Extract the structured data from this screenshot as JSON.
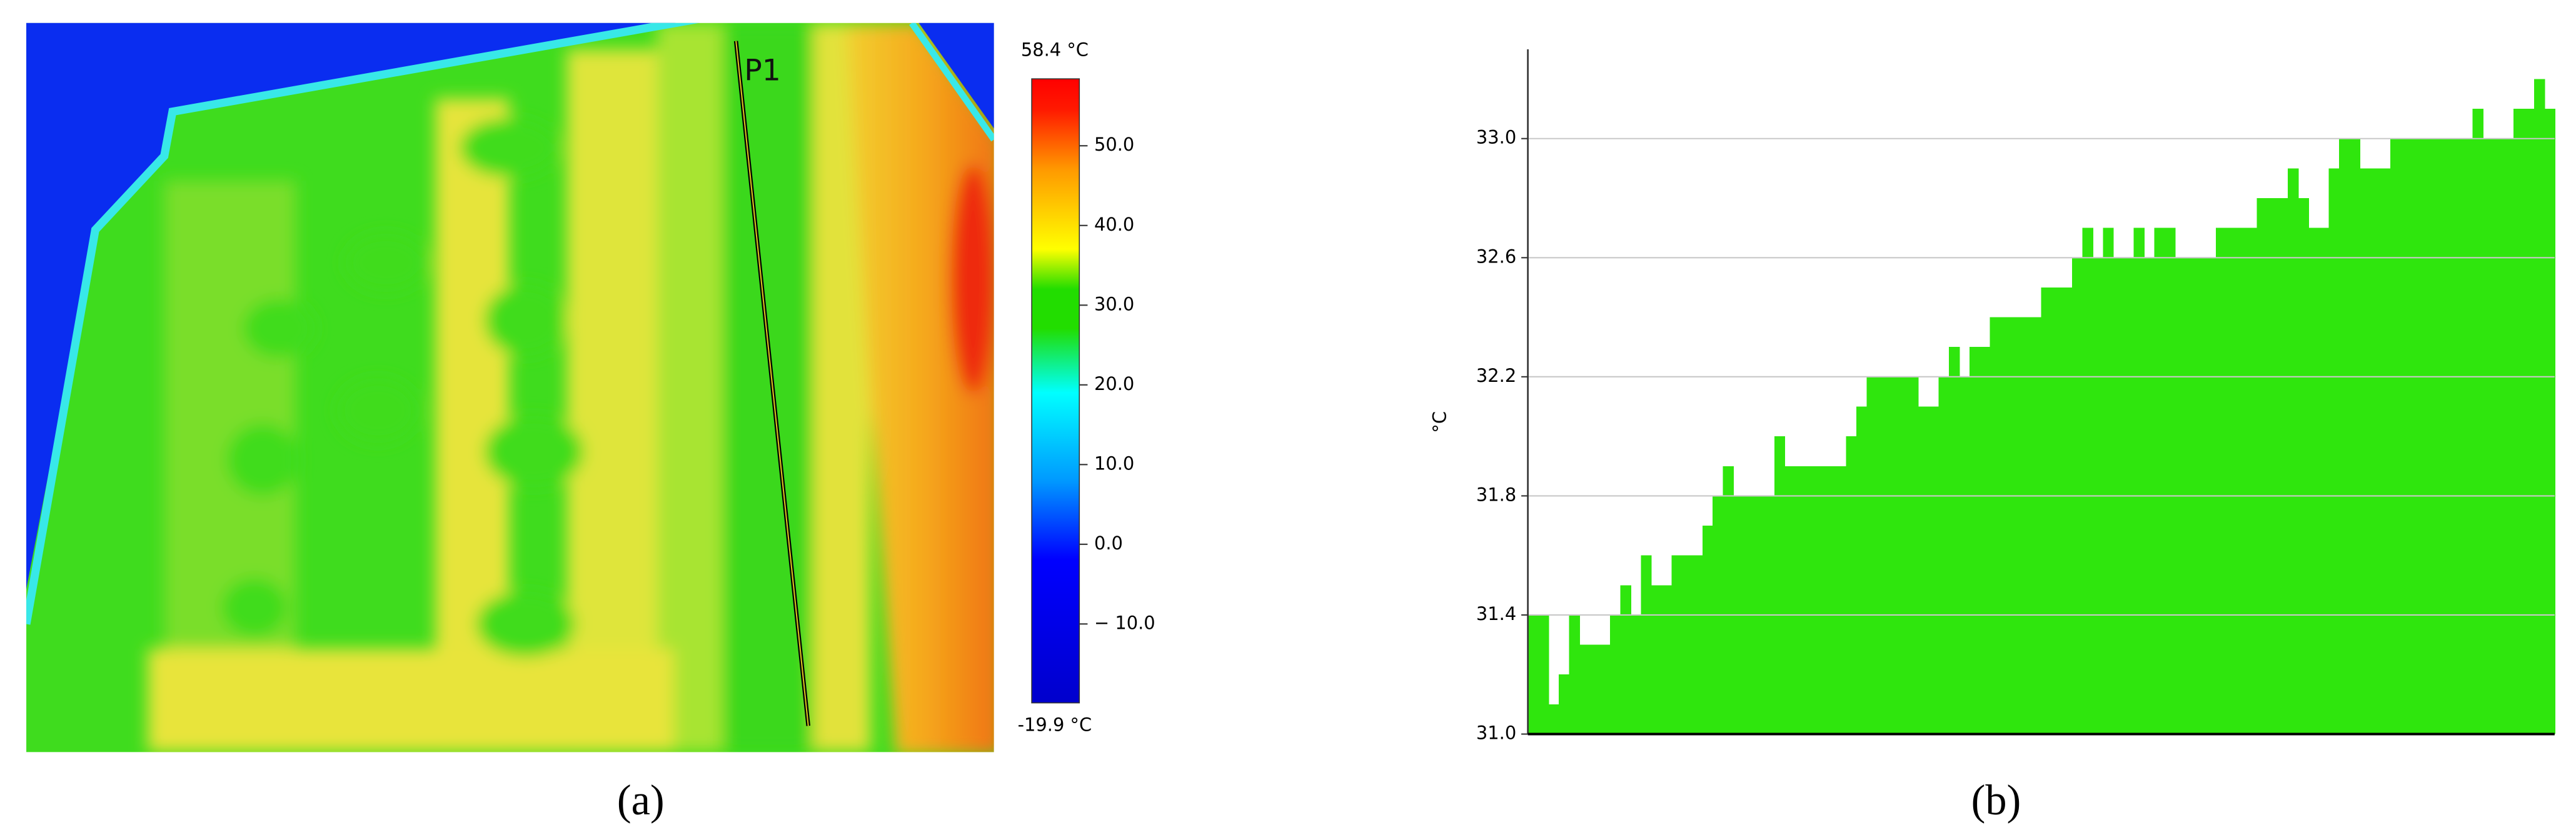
{
  "chart_data": [
    {
      "type": "image",
      "label": "P1",
      "caption": "(a)",
      "colorbar": {
        "max": {
          "value": 58.4,
          "label": "58.4 °C"
        },
        "min": {
          "value": -19.9,
          "label": "-19.9 °C"
        },
        "ticks": [
          {
            "value": 50,
            "label": "50.0"
          },
          {
            "value": 40,
            "label": "40.0"
          },
          {
            "value": 30,
            "label": "30.0"
          },
          {
            "value": 20,
            "label": "20.0"
          },
          {
            "value": 10,
            "label": "10.0"
          },
          {
            "value": 0,
            "label": "0.0"
          },
          {
            "value": -10,
            "label": "− 10.0"
          }
        ]
      }
    },
    {
      "type": "bar",
      "caption": "(b)",
      "y_label": "°C",
      "color": "#2fe60d",
      "grid": true,
      "ylim": [
        31,
        33.3
      ],
      "yticks": [
        {
          "value": 31,
          "label": "31.0"
        },
        {
          "value": 31.4,
          "label": "31.4"
        },
        {
          "value": 31.8,
          "label": "31.8"
        },
        {
          "value": 32.2,
          "label": "32.2"
        },
        {
          "value": 32.6,
          "label": "32.6"
        },
        {
          "value": 33,
          "label": "33.0"
        }
      ],
      "values": [
        31.4,
        31.4,
        31.1,
        31.2,
        31.4,
        31.3,
        31.3,
        31.3,
        31.4,
        31.5,
        31.4,
        31.6,
        31.5,
        31.5,
        31.6,
        31.6,
        31.6,
        31.7,
        31.8,
        31.9,
        31.8,
        31.8,
        31.8,
        31.8,
        32.0,
        31.9,
        31.9,
        31.9,
        31.9,
        31.9,
        31.9,
        32.0,
        32.1,
        32.2,
        32.2,
        32.2,
        32.2,
        32.2,
        32.1,
        32.1,
        32.2,
        32.3,
        32.2,
        32.3,
        32.3,
        32.4,
        32.4,
        32.4,
        32.4,
        32.4,
        32.5,
        32.5,
        32.5,
        32.6,
        32.7,
        32.6,
        32.7,
        32.6,
        32.6,
        32.7,
        32.6,
        32.7,
        32.7,
        32.6,
        32.6,
        32.6,
        32.6,
        32.7,
        32.7,
        32.7,
        32.7,
        32.8,
        32.8,
        32.8,
        32.9,
        32.8,
        32.7,
        32.7,
        32.9,
        33.0,
        33.0,
        32.9,
        32.9,
        32.9,
        33.0,
        33.0,
        33.0,
        33.0,
        33.0,
        33.0,
        33.0,
        33.0,
        33.1,
        33.0,
        33.0,
        33.0,
        33.1,
        33.1,
        33.2,
        33.1
      ]
    }
  ]
}
